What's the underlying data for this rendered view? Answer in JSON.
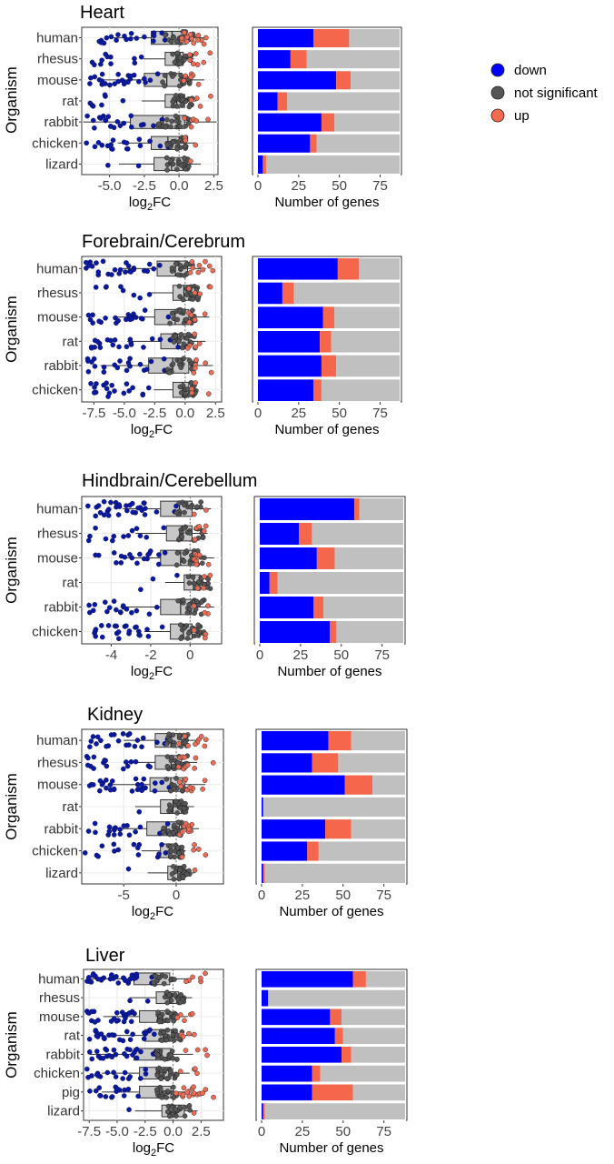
{
  "legend": {
    "items": [
      {
        "label": "down",
        "color": "#0000ff"
      },
      {
        "label": "not significant",
        "color": "#555555"
      },
      {
        "label": "up",
        "color": "#f46a4e"
      }
    ]
  },
  "colors": {
    "down_bar": "#0000ff",
    "up_bar": "#f4674d",
    "ns_bar": "#c0c0c0",
    "down_point": "#0a1aa0",
    "ns_point": "#555555",
    "up_point": "#ee6b55"
  },
  "chart_data": [
    {
      "type": "bar",
      "panel": "Heart",
      "title": "Heart",
      "ylabel": "Organism",
      "categories": [
        "human",
        "rhesus",
        "mouse",
        "rat",
        "rabbit",
        "chicken",
        "lizard"
      ],
      "series": [
        {
          "name": "down",
          "values": [
            34,
            20,
            48,
            12,
            39,
            32,
            3
          ]
        },
        {
          "name": "up",
          "values": [
            22,
            10,
            9,
            6,
            8,
            4,
            2
          ]
        },
        {
          "name": "not significant",
          "values": [
            31,
            57,
            30,
            69,
            40,
            51,
            82
          ]
        }
      ],
      "xlabel": "Number of genes",
      "xlim": [
        0,
        87
      ],
      "xticks": [
        0,
        25,
        50,
        75
      ],
      "scatter": {
        "xlabel": "log2FC",
        "xlim": [
          -7,
          2.8
        ],
        "xticks": [
          -5.0,
          -2.5,
          0.0,
          2.5
        ],
        "xtick_labels": [
          "-5.0",
          "-2.5",
          "0.0",
          "2.5"
        ],
        "box_ranges": [
          [
            -2.0,
            0.5
          ],
          [
            -1.0,
            0.3
          ],
          [
            -2.5,
            0.2
          ],
          [
            -1.0,
            0.4
          ],
          [
            -3.5,
            0.4
          ],
          [
            -2.0,
            0.0
          ],
          [
            -1.8,
            0.3
          ]
        ]
      }
    },
    {
      "type": "bar",
      "panel": "Forebrain/Cerebrum",
      "title": "Forebrain/Cerebrum",
      "ylabel": "Organism",
      "categories": [
        "human",
        "rhesus",
        "mouse",
        "rat",
        "rabbit",
        "chicken"
      ],
      "series": [
        {
          "name": "down",
          "values": [
            49,
            15,
            40,
            38,
            39,
            34
          ]
        },
        {
          "name": "up",
          "values": [
            13,
            7,
            7,
            7,
            9,
            5
          ]
        },
        {
          "name": "not significant",
          "values": [
            25,
            65,
            40,
            42,
            39,
            48
          ]
        }
      ],
      "xlabel": "Number of genes",
      "xlim": [
        0,
        87
      ],
      "xticks": [
        0,
        25,
        50,
        75
      ],
      "scatter": {
        "xlabel": "log2FC",
        "xlim": [
          -8.5,
          3
        ],
        "xticks": [
          -7.5,
          -5.0,
          -2.5,
          0.0,
          2.5
        ],
        "xtick_labels": [
          "-7.5",
          "-5.0",
          "-2.5",
          "0.0",
          "2.5"
        ],
        "box_ranges": [
          [
            -2.3,
            0.2
          ],
          [
            -1.0,
            0.5
          ],
          [
            -2.5,
            0.3
          ],
          [
            -2.0,
            0.3
          ],
          [
            -3.0,
            0.3
          ],
          [
            -1.0,
            0.3
          ]
        ]
      }
    },
    {
      "type": "bar",
      "panel": "Hindbrain/Cerebellum",
      "title": "Hindbrain/Cerebellum",
      "ylabel": "Organism",
      "categories": [
        "human",
        "rhesus",
        "mouse",
        "rat",
        "rabbit",
        "chicken"
      ],
      "series": [
        {
          "name": "down",
          "values": [
            58,
            24,
            35,
            6,
            33,
            43
          ]
        },
        {
          "name": "up",
          "values": [
            3,
            8,
            11,
            5,
            6,
            4
          ]
        },
        {
          "name": "not significant",
          "values": [
            27,
            56,
            42,
            77,
            49,
            41
          ]
        }
      ],
      "xlabel": "Number of genes",
      "xlim": [
        0,
        88
      ],
      "xticks": [
        0,
        25,
        50,
        75
      ],
      "scatter": {
        "xlabel": "log2FC",
        "xlim": [
          -5.5,
          1.6
        ],
        "xticks": [
          -4,
          -2,
          0
        ],
        "xtick_labels": [
          "-4",
          "-2",
          "0"
        ],
        "box_ranges": [
          [
            -1.5,
            0.1
          ],
          [
            -1.2,
            0.1
          ],
          [
            -1.5,
            0.2
          ],
          [
            -0.3,
            0.5
          ],
          [
            -1.5,
            0.2
          ],
          [
            -1.0,
            0.1
          ]
        ]
      }
    },
    {
      "type": "bar",
      "panel": "Kidney",
      "title": "Kidney",
      "ylabel": "Organism",
      "categories": [
        "human",
        "rhesus",
        "mouse",
        "rat",
        "rabbit",
        "chicken",
        "lizard"
      ],
      "series": [
        {
          "name": "down",
          "values": [
            41,
            31,
            51,
            1,
            39,
            28,
            1
          ]
        },
        {
          "name": "up",
          "values": [
            14,
            16,
            17,
            0,
            16,
            7,
            1
          ]
        },
        {
          "name": "not significant",
          "values": [
            33,
            41,
            20,
            87,
            33,
            53,
            86
          ]
        }
      ],
      "xlabel": "Number of genes",
      "xlim": [
        0,
        88
      ],
      "xticks": [
        0,
        25,
        50,
        75
      ],
      "scatter": {
        "xlabel": "log2FC",
        "xlim": [
          -9,
          4.5
        ],
        "xticks": [
          -5,
          0
        ],
        "xtick_labels": [
          "-5",
          "0"
        ],
        "box_ranges": [
          [
            -2.0,
            0.5
          ],
          [
            -2.0,
            0.5
          ],
          [
            -2.5,
            0.8
          ],
          [
            -1.5,
            0.5
          ],
          [
            -2.8,
            0.3
          ],
          [
            -1.5,
            0.0
          ],
          [
            -0.8,
            0.8
          ]
        ]
      }
    },
    {
      "type": "bar",
      "panel": "Liver",
      "title": "Liver",
      "ylabel": "Organism",
      "categories": [
        "human",
        "rhesus",
        "mouse",
        "rat",
        "rabbit",
        "chicken",
        "pig",
        "lizard"
      ],
      "series": [
        {
          "name": "down",
          "values": [
            56,
            4,
            42,
            45,
            49,
            31,
            31,
            1
          ]
        },
        {
          "name": "up",
          "values": [
            8,
            0,
            7,
            5,
            6,
            5,
            25,
            1
          ]
        },
        {
          "name": "not significant",
          "values": [
            24,
            84,
            39,
            38,
            33,
            52,
            32,
            86
          ]
        }
      ],
      "xlabel": "Number of genes",
      "xlim": [
        0,
        88
      ],
      "xticks": [
        0,
        25,
        50,
        75
      ],
      "scatter": {
        "xlabel": "log2FC",
        "xlim": [
          -8,
          4.5
        ],
        "xticks": [
          -7.5,
          -5.0,
          -2.5,
          0.0,
          2.5
        ],
        "xtick_labels": [
          "-7.5",
          "-5.0",
          "-2.5",
          "0.0",
          "2.5"
        ],
        "box_ranges": [
          [
            -3.5,
            -0.3
          ],
          [
            -1.5,
            0.5
          ],
          [
            -3.0,
            -0.3
          ],
          [
            -2.5,
            0.2
          ],
          [
            -3.5,
            -0.2
          ],
          [
            -3.0,
            -0.2
          ],
          [
            -3.0,
            -0.2
          ],
          [
            -1.0,
            1.0
          ]
        ]
      }
    }
  ]
}
